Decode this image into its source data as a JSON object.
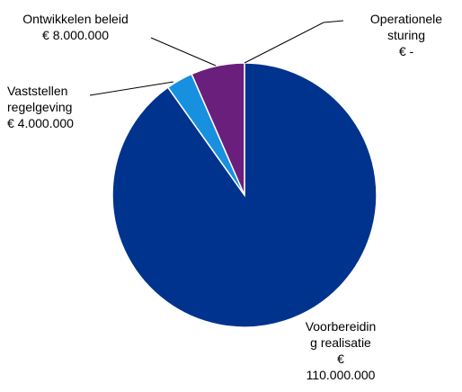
{
  "chart_data": {
    "type": "pie",
    "categories": [
      "Voorbereiding realisatie",
      "Vaststellen regelgeving",
      "Ontwikkelen beleid",
      "Operationele sturing"
    ],
    "values": [
      110000000,
      4000000,
      8000000,
      0
    ],
    "value_labels": [
      "€ 110.000.000",
      "€ 4.000.000",
      "€ 8.000.000",
      "€ -"
    ],
    "colors": [
      "#00338d",
      "#1790e0",
      "#6b1f7c",
      "#a0a0a0"
    ]
  }
}
